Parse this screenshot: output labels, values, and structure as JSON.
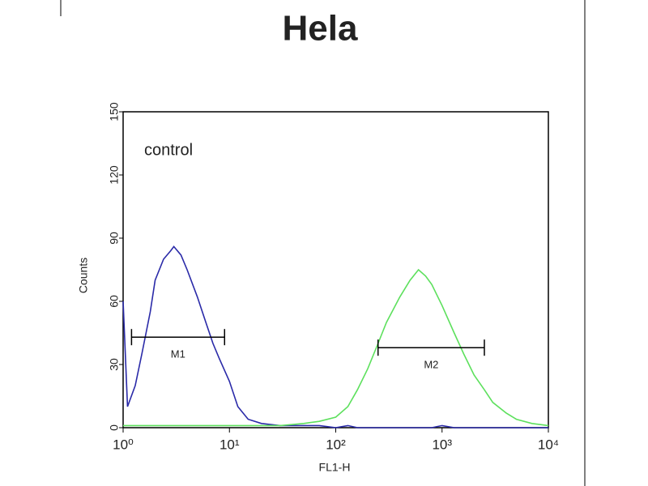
{
  "chart_data": {
    "type": "line",
    "title": "Hela",
    "x_label": "FL1-H",
    "y_label": "Counts",
    "annotation": "control",
    "x_log": true,
    "xlim": [
      1,
      10000
    ],
    "xticks": [
      {
        "value": 1,
        "label": "10⁰"
      },
      {
        "value": 10,
        "label": "10¹"
      },
      {
        "value": 100,
        "label": "10²"
      },
      {
        "value": 1000,
        "label": "10³"
      },
      {
        "value": 10000,
        "label": "10⁴"
      }
    ],
    "ylim": [
      0,
      150
    ],
    "yticks": [
      0,
      30,
      60,
      90,
      120,
      150
    ],
    "x": [
      1,
      1.1,
      1.3,
      1.5,
      1.8,
      2,
      2.4,
      2.8,
      3,
      3.5,
      4,
      5,
      6,
      7,
      8,
      10,
      12,
      15,
      20,
      30,
      50,
      70,
      100,
      130,
      160,
      200,
      250,
      300,
      400,
      500,
      600,
      700,
      800,
      1000,
      1300,
      1600,
      2000,
      2500,
      3000,
      4000,
      5000,
      7000,
      10000
    ],
    "series": [
      {
        "color": "#2a2aa8",
        "values": [
          60,
          10,
          20,
          35,
          55,
          70,
          80,
          84,
          86,
          82,
          75,
          62,
          50,
          40,
          33,
          22,
          10,
          4,
          2,
          1,
          1,
          1,
          0,
          1,
          0,
          0,
          0,
          0,
          0,
          0,
          0,
          0,
          0,
          1,
          0,
          0,
          0,
          0,
          0,
          0,
          0,
          0,
          0
        ]
      },
      {
        "color": "#5de05d",
        "values": [
          1,
          1,
          1,
          1,
          1,
          1,
          1,
          1,
          1,
          1,
          1,
          1,
          1,
          1,
          1,
          1,
          1,
          1,
          1,
          1,
          2,
          3,
          5,
          10,
          18,
          28,
          40,
          50,
          62,
          70,
          75,
          72,
          68,
          58,
          45,
          35,
          25,
          18,
          12,
          7,
          4,
          2,
          1
        ]
      }
    ],
    "markers": [
      {
        "label": "M1",
        "range": [
          1.2,
          9
        ],
        "level": 43
      },
      {
        "label": "M2",
        "range": [
          250,
          2500
        ],
        "level": 38
      }
    ]
  }
}
